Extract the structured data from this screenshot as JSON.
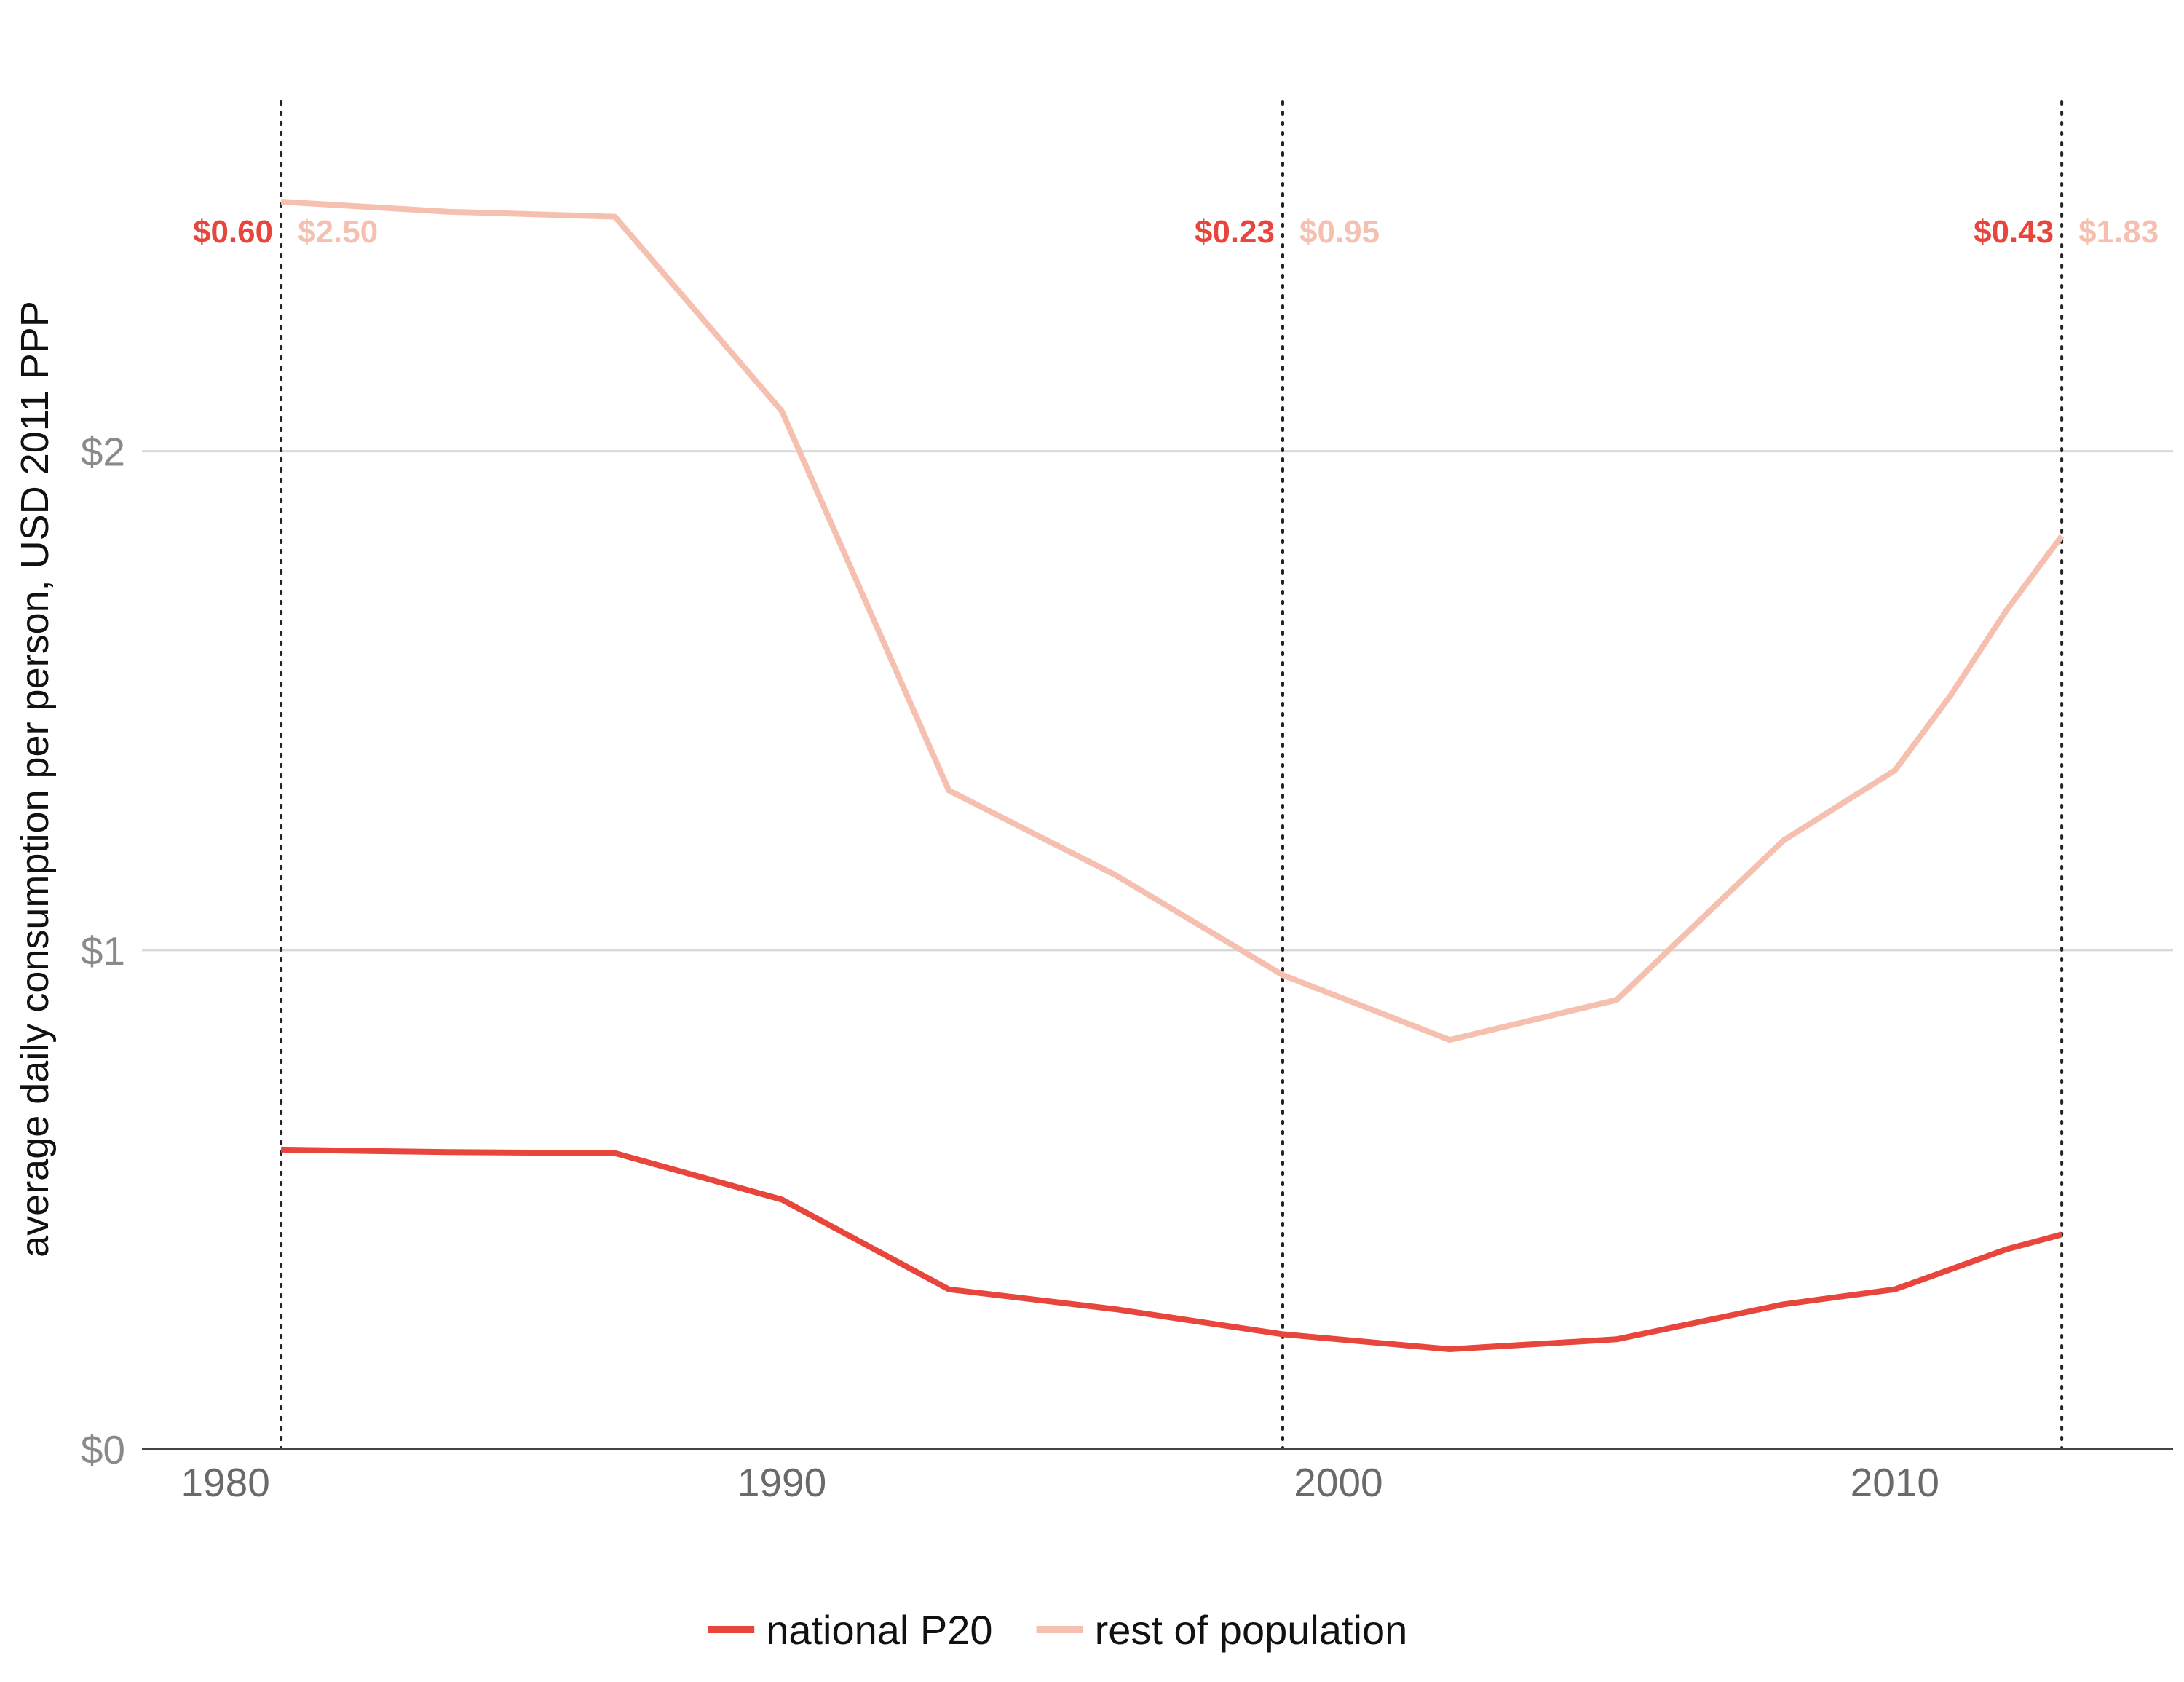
{
  "chart_data": {
    "type": "line",
    "ylabel": "average daily consumption per person, USD 2011 PPP",
    "xlim": [
      1978.5,
      2015
    ],
    "ylim": [
      0,
      2.7
    ],
    "x_ticks": [
      1980,
      1990,
      2000,
      2010
    ],
    "x_tick_labels": [
      "1980",
      "1990",
      "2000",
      "2010"
    ],
    "y_ticks": [
      0,
      1,
      2
    ],
    "y_tick_labels": [
      "$0",
      "$1",
      "$2"
    ],
    "grid": true,
    "legend_position": "bottom",
    "series": [
      {
        "name": "national P20",
        "color": "#e8453c",
        "x": [
          1981,
          1984,
          1987,
          1990,
          1993,
          1996,
          1999,
          2002,
          2005,
          2008,
          2010,
          2011,
          2012,
          2013
        ],
        "y": [
          0.6,
          0.595,
          0.593,
          0.5,
          0.32,
          0.28,
          0.23,
          0.2,
          0.22,
          0.29,
          0.32,
          0.36,
          0.4,
          0.43
        ]
      },
      {
        "name": "rest of population",
        "color": "#f6c0b0",
        "x": [
          1981,
          1984,
          1987,
          1990,
          1993,
          1996,
          1999,
          2002,
          2005,
          2008,
          2010,
          2011,
          2012,
          2013
        ],
        "y": [
          2.5,
          2.48,
          2.47,
          2.08,
          1.32,
          1.15,
          0.95,
          0.82,
          0.9,
          1.22,
          1.36,
          1.51,
          1.68,
          1.83
        ]
      }
    ],
    "annotations": [
      {
        "x": 1981,
        "p20_label": "$0.60",
        "rest_label": "$2.50"
      },
      {
        "x": 1999,
        "p20_label": "$0.23",
        "rest_label": "$0.95"
      },
      {
        "x": 2013,
        "p20_label": "$0.43",
        "rest_label": "$1.83"
      }
    ]
  }
}
